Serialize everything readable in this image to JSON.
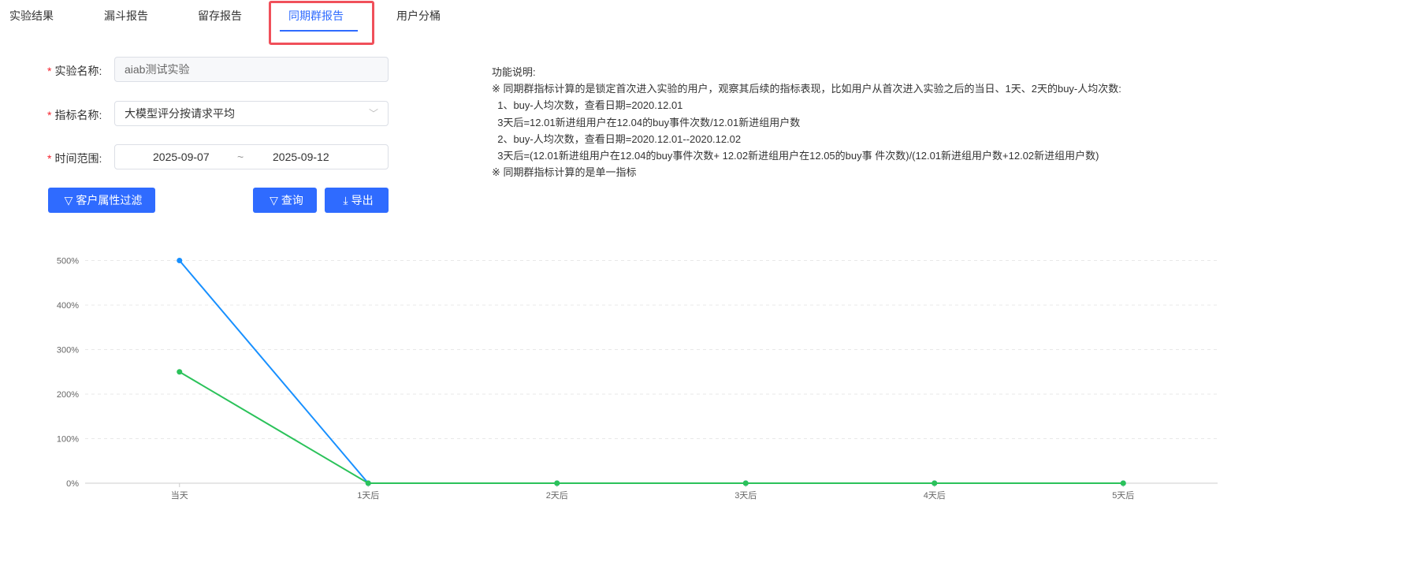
{
  "tabs": [
    {
      "label": "实验结果"
    },
    {
      "label": "漏斗报告"
    },
    {
      "label": "留存报告"
    },
    {
      "label": "同期群报告",
      "active": true
    },
    {
      "label": "用户分桶"
    }
  ],
  "form": {
    "experiment_label": "实验名称:",
    "experiment_value": "aiab测试实验",
    "metric_label": "指标名称:",
    "metric_value": "大模型评分按请求平均",
    "time_label": "时间范围:",
    "start_date": "2025-09-07",
    "separator": "~",
    "end_date": "2025-09-12",
    "required_mark": "*"
  },
  "buttons": {
    "filter": "客户属性过滤",
    "query": "查询",
    "export": "导出"
  },
  "description": {
    "title": "功能说明:",
    "lines": [
      "※ 同期群指标计算的是锁定首次进入实验的用户，观察其后续的指标表现，比如用户从首次进入实验之后的当日、1天、2天的buy-人均次数:",
      "  1、buy-人均次数，查看日期=2020.12.01",
      "  3天后=12.01新进组用户在12.04的buy事件次数/12.01新进组用户数",
      "  2、buy-人均次数，查看日期=2020.12.01--2020.12.02",
      "  3天后=(12.01新进组用户在12.04的buy事件次数+ 12.02新进组用户在12.05的buy事 件次数)/(12.01新进组用户数+12.02新进组用户数)",
      "※ 同期群指标计算的是单一指标"
    ]
  },
  "colors": {
    "accent": "#2f6bff",
    "series1": "#1890ff",
    "series2": "#2bc25a",
    "highlight": "#f0505a"
  },
  "chart_data": {
    "type": "line",
    "categories": [
      "当天",
      "1天后",
      "2天后",
      "3天后",
      "4天后",
      "5天后"
    ],
    "yticks": [
      "0%",
      "100%",
      "200%",
      "300%",
      "400%",
      "500%"
    ],
    "ylim": [
      0,
      500
    ],
    "grid": true,
    "series": [
      {
        "values": [
          500,
          0,
          0,
          0,
          0,
          0
        ],
        "color": "#1890ff"
      },
      {
        "values": [
          250,
          0,
          0,
          0,
          0,
          0
        ],
        "color": "#2bc25a"
      }
    ]
  }
}
